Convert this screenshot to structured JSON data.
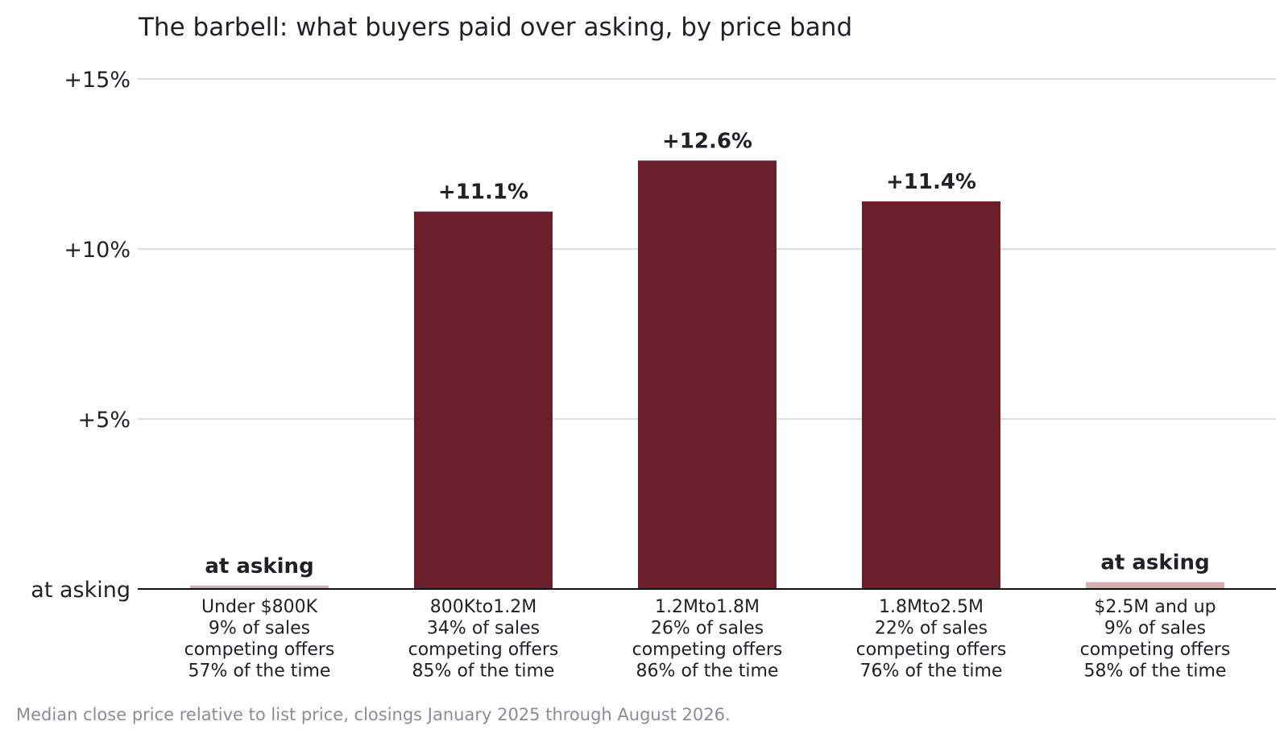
{
  "chart_data": {
    "type": "bar",
    "title": "The barbell: what buyers paid over asking, by price band",
    "footnote": "Median close price relative to list price, closings January 2025 through August 2026.",
    "y_ticks": [
      {
        "value": 0,
        "label": "at asking"
      },
      {
        "value": 5,
        "label": "+5%"
      },
      {
        "value": 10,
        "label": "+10%"
      },
      {
        "value": 15,
        "label": "+15%"
      }
    ],
    "ylim": [
      0,
      15
    ],
    "grid": true,
    "categories": [
      [
        "Under $800K",
        "9% of sales",
        "competing offers",
        "57% of the time"
      ],
      [
        "800Kto1.2M",
        "34% of sales",
        "competing offers",
        "85% of the time"
      ],
      [
        "1.2Mto1.8M",
        "26% of sales",
        "competing offers",
        "86% of the time"
      ],
      [
        "1.8Mto2.5M",
        "22% of sales",
        "competing offers",
        "76% of the time"
      ],
      [
        "$2.5M and up",
        "9% of sales",
        "competing offers",
        "58% of the time"
      ]
    ],
    "values": [
      0.1,
      11.1,
      12.6,
      11.4,
      0.2
    ],
    "value_labels": [
      "at asking",
      "+11.1%",
      "+12.6%",
      "+11.4%",
      "at asking"
    ],
    "highlight": [
      false,
      true,
      true,
      true,
      false
    ],
    "colors": {
      "highlight": "#6b1f2a",
      "muted": "#d4aeb3"
    }
  }
}
